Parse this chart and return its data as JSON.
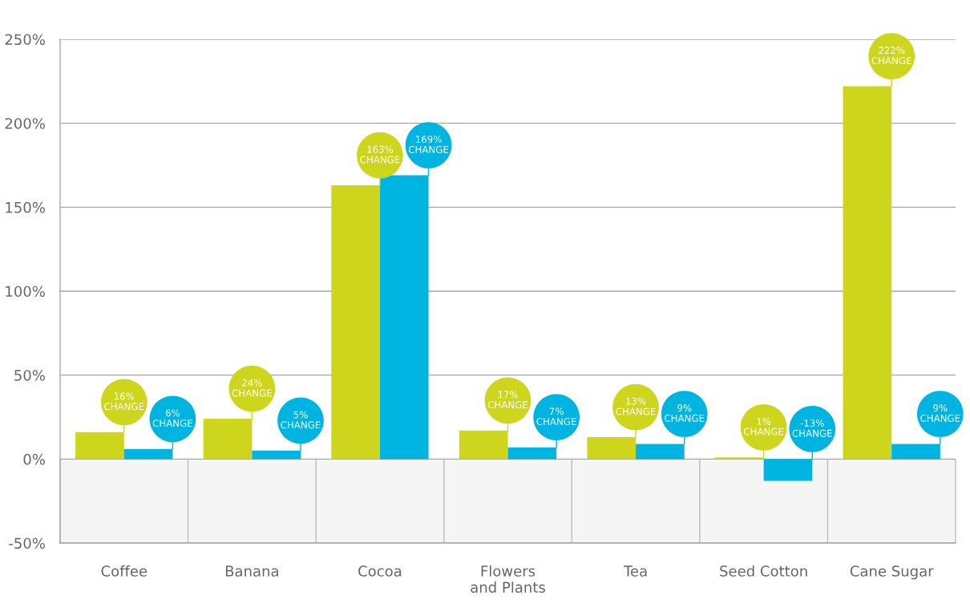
{
  "chart_data": {
    "type": "bar",
    "categories": [
      "Coffee",
      "Banana",
      "Cocoa",
      "Flowers\nand Plants",
      "Tea",
      "Seed Cotton",
      "Cane Sugar"
    ],
    "series": [
      {
        "color": "#cdd51d",
        "values": [
          16,
          24,
          163,
          17,
          13,
          1,
          222
        ],
        "value_labels": [
          "16%\nCHANGE",
          "24%\nCHANGE",
          "163%\nCHANGE",
          "17%\nCHANGE",
          "13%\nCHANGE",
          "1%\nCHANGE",
          "222%\nCHANGE"
        ]
      },
      {
        "color": "#00b4e2",
        "values": [
          6,
          5,
          169,
          7,
          9,
          -13,
          9
        ],
        "value_labels": [
          "6%\nCHANGE",
          "5%\nCHANGE",
          "169%\nCHANGE",
          "7%\nCHANGE",
          "9%\nCHANGE",
          "-13%\nCHANGE",
          "9%\nCHANGE"
        ]
      }
    ],
    "ylim": [
      -50,
      250
    ],
    "yticks": [
      {
        "value": -50,
        "label": "-50%"
      },
      {
        "value": 0,
        "label": "0%"
      },
      {
        "value": 50,
        "label": "50%"
      },
      {
        "value": 100,
        "label": "100%"
      },
      {
        "value": 150,
        "label": "150%"
      },
      {
        "value": 200,
        "label": "200%"
      },
      {
        "value": 250,
        "label": "250%"
      }
    ],
    "grid": "y",
    "bands": [
      {
        "axis": "y",
        "from": -50,
        "to": 0,
        "color": "#f5f5f5"
      }
    ]
  }
}
